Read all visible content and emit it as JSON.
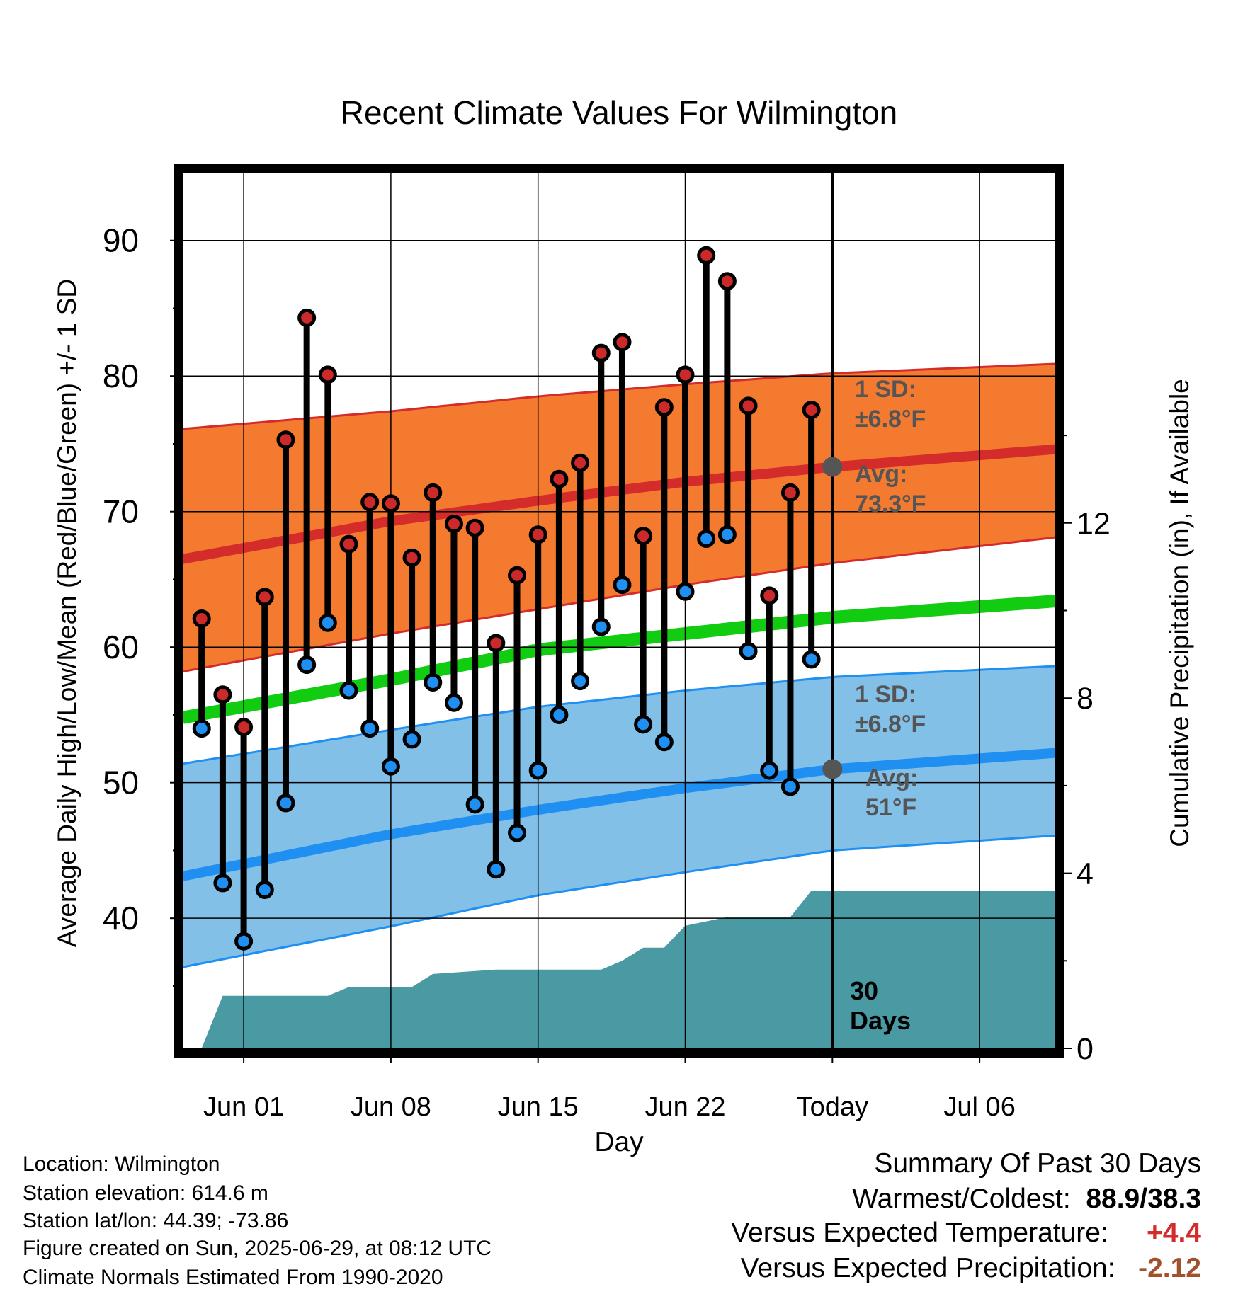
{
  "chart_data": {
    "type": "line",
    "title": "Recent Climate Values For Wilmington",
    "xlabel": "Day",
    "ylabel": "Average Daily High/Low/Mean (Red/Blue/Green) +/- 1 SD",
    "y2label": "Cumulative Precipitation (in), If Available",
    "ylim": [
      30.4,
      95.0
    ],
    "y2lim": [
      0,
      20.0
    ],
    "xlim": [
      -2.9,
      38.6
    ],
    "y_ticks": [
      "40",
      "50",
      "60",
      "70",
      "80",
      "90"
    ],
    "y2_ticks": [
      "0",
      "4",
      "8",
      "12"
    ],
    "x_tick_labels": [
      {
        "day": 0,
        "label": "Jun 01"
      },
      {
        "day": 7,
        "label": "Jun 08"
      },
      {
        "day": 14,
        "label": "Jun 15"
      },
      {
        "day": 21,
        "label": "Jun 22"
      },
      {
        "day": 28,
        "label": "Today"
      },
      {
        "day": 35,
        "label": "Jul 06"
      }
    ],
    "today_day": 28,
    "days": [
      -2,
      -1,
      0,
      1,
      2,
      3,
      4,
      5,
      6,
      7,
      8,
      9,
      10,
      11,
      12,
      13,
      14,
      15,
      16,
      17,
      18,
      19,
      20,
      21,
      22,
      23,
      24,
      25,
      26,
      27
    ],
    "daily_high": [
      62.1,
      56.5,
      54.1,
      63.7,
      75.3,
      84.3,
      80.1,
      67.6,
      70.7,
      70.6,
      66.6,
      71.4,
      69.1,
      68.8,
      60.3,
      65.3,
      68.3,
      72.4,
      73.6,
      81.7,
      82.5,
      68.2,
      77.7,
      80.1,
      88.9,
      87.0,
      77.8,
      63.8,
      71.4,
      77.5
    ],
    "daily_low": [
      54.0,
      42.6,
      38.3,
      42.1,
      48.5,
      58.7,
      61.8,
      56.8,
      54.0,
      51.2,
      53.2,
      57.4,
      55.9,
      48.4,
      43.6,
      46.3,
      50.9,
      55.0,
      57.5,
      61.5,
      64.6,
      54.3,
      53.0,
      64.1,
      68.0,
      68.3,
      59.7,
      50.9,
      49.7,
      59.1
    ],
    "normals": {
      "x": [
        -2.9,
        7,
        14,
        21,
        28,
        38.6
      ],
      "high_avg": [
        66.5,
        69.3,
        70.8,
        72.2,
        73.3,
        74.6
      ],
      "high_upper": [
        76.1,
        77.4,
        78.5,
        79.4,
        80.2,
        80.9
      ],
      "high_lower": [
        58.2,
        61.0,
        62.8,
        64.6,
        66.2,
        68.1
      ],
      "mean": [
        54.8,
        57.6,
        59.8,
        61.0,
        62.2,
        63.4
      ],
      "low_avg": [
        43.1,
        46.2,
        48.0,
        49.6,
        51.0,
        52.2
      ],
      "low_upper": [
        51.4,
        53.9,
        55.6,
        56.8,
        57.8,
        58.6
      ],
      "low_lower": [
        36.4,
        39.4,
        41.7,
        43.4,
        45.0,
        46.1
      ]
    },
    "precip": {
      "x": [
        -2.0,
        -1.0,
        3.0,
        4.0,
        5.0,
        8.0,
        9.0,
        12.0,
        14.0,
        17.0,
        18.0,
        19.0,
        20.0,
        21.0,
        22.0,
        23.0,
        24.0,
        25.0,
        26.0,
        27.0,
        28.0,
        38.6
      ],
      "y": [
        0.0,
        1.2,
        1.2,
        1.2,
        1.4,
        1.4,
        1.7,
        1.8,
        1.8,
        1.8,
        2.0,
        2.3,
        2.3,
        2.8,
        2.9,
        3.0,
        3.0,
        3.0,
        3.0,
        3.6,
        3.6,
        3.6
      ]
    },
    "annotations": {
      "high_sd": [
        "1 SD:",
        "±6.8°F"
      ],
      "high_avg": [
        "Avg:",
        "73.3°F"
      ],
      "low_sd": [
        "1 SD:",
        "±6.8°F"
      ],
      "low_avg": [
        "Avg:",
        "51°F"
      ],
      "period": [
        "30",
        "Days"
      ]
    },
    "colors": {
      "high_band": "#f47a30",
      "high_line": "#d42b2b",
      "low_band": "#82c0e8",
      "low_line": "#1f8ff2",
      "mean_line": "#12cc12",
      "precip": "#4a9aa3",
      "high_dot": "#cc2a2a",
      "low_dot": "#1f8ff2",
      "annotation": "#555555"
    }
  },
  "info": {
    "location": "Location: Wilmington",
    "elevation": "Station elevation: 614.6 m",
    "latlon": "Station lat/lon: 44.39; -73.86",
    "created": "Figure created on Sun, 2025-06-29, at 08:12 UTC",
    "normals": "Climate Normals Estimated From 1990-2020"
  },
  "summary": {
    "title": "Summary Of Past 30 Days",
    "warm_cold_label": "Warmest/Coldest:",
    "warm_cold_value": "88.9/38.3",
    "temp_label": "Versus Expected Temperature:",
    "temp_value": "+4.4",
    "temp_color": "#d42b2b",
    "precip_label": "Versus Expected Precipitation:",
    "precip_value": "-2.12",
    "precip_color": "#a0522d"
  }
}
